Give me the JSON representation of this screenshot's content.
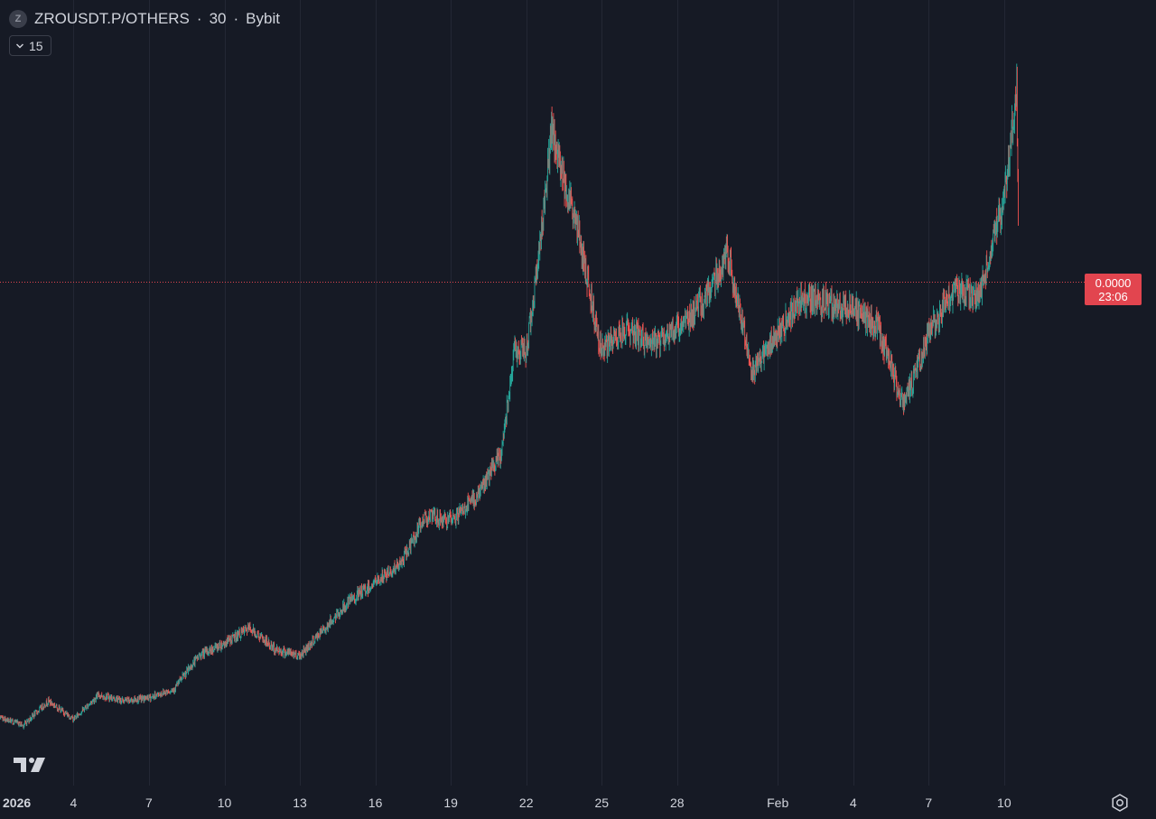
{
  "header": {
    "logo_letter": "Z",
    "symbol": "ZROUSDT.P/OTHERS",
    "interval": "30",
    "exchange": "Bybit",
    "separator": "·"
  },
  "indicator_button": {
    "label": "15"
  },
  "price_tag": {
    "price": "0.0000",
    "countdown": "23:06",
    "color": "#e2454f"
  },
  "colors": {
    "background": "#161a25",
    "up": "#26a69a",
    "down": "#ef5350",
    "grid": "#232734",
    "price_line": "#e2454f"
  },
  "chart_data": {
    "type": "candlestick",
    "title": "ZROUSDT.P/OTHERS · 30 · Bybit",
    "x_tick_labels": [
      "2026",
      "4",
      "7",
      "10",
      "13",
      "16",
      "19",
      "22",
      "25",
      "28",
      "Feb",
      "4",
      "7",
      "10"
    ],
    "x_range": [
      "2026-01-01",
      "2026-02-11"
    ],
    "y_scale_visible": false,
    "last_price": "0.0000",
    "grid": true,
    "trend_keypoints": [
      {
        "date": "2026-01-01",
        "price": 0.19
      },
      {
        "date": "2026-01-02",
        "price": 0.175
      },
      {
        "date": "2026-01-03",
        "price": 0.215
      },
      {
        "date": "2026-01-04",
        "price": 0.185
      },
      {
        "date": "2026-01-05",
        "price": 0.225
      },
      {
        "date": "2026-01-06",
        "price": 0.215
      },
      {
        "date": "2026-01-07",
        "price": 0.22
      },
      {
        "date": "2026-01-08",
        "price": 0.235
      },
      {
        "date": "2026-01-09",
        "price": 0.29
      },
      {
        "date": "2026-01-10",
        "price": 0.31
      },
      {
        "date": "2026-01-11",
        "price": 0.335
      },
      {
        "date": "2026-01-12",
        "price": 0.3
      },
      {
        "date": "2026-01-13",
        "price": 0.29
      },
      {
        "date": "2026-01-14",
        "price": 0.335
      },
      {
        "date": "2026-01-15",
        "price": 0.38
      },
      {
        "date": "2026-01-16",
        "price": 0.41
      },
      {
        "date": "2026-01-17",
        "price": 0.44
      },
      {
        "date": "2026-01-18",
        "price": 0.52
      },
      {
        "date": "2026-01-19",
        "price": 0.51
      },
      {
        "date": "2026-01-20",
        "price": 0.55
      },
      {
        "date": "2026-01-21",
        "price": 0.62
      },
      {
        "date": "2026-01-21T12:00",
        "price": 0.79
      },
      {
        "date": "2026-01-22",
        "price": 0.79
      },
      {
        "date": "2026-01-22T12:00",
        "price": 0.95
      },
      {
        "date": "2026-01-23",
        "price": 1.15
      },
      {
        "date": "2026-01-24",
        "price": 1.0
      },
      {
        "date": "2026-01-25",
        "price": 0.79
      },
      {
        "date": "2026-01-26",
        "price": 0.83
      },
      {
        "date": "2026-01-27",
        "price": 0.8
      },
      {
        "date": "2026-01-28",
        "price": 0.83
      },
      {
        "date": "2026-01-29",
        "price": 0.87
      },
      {
        "date": "2026-01-30",
        "price": 0.95
      },
      {
        "date": "2026-01-31",
        "price": 0.76
      },
      {
        "date": "2026-02-01",
        "price": 0.82
      },
      {
        "date": "2026-02-02",
        "price": 0.88
      },
      {
        "date": "2026-02-03",
        "price": 0.87
      },
      {
        "date": "2026-02-04",
        "price": 0.86
      },
      {
        "date": "2026-02-05",
        "price": 0.83
      },
      {
        "date": "2026-02-06",
        "price": 0.7
      },
      {
        "date": "2026-02-07",
        "price": 0.82
      },
      {
        "date": "2026-02-08",
        "price": 0.89
      },
      {
        "date": "2026-02-09",
        "price": 0.88
      },
      {
        "date": "2026-02-10",
        "price": 1.04
      },
      {
        "date": "2026-02-10T12:00",
        "price": 1.22
      },
      {
        "date": "2026-02-10T14:00",
        "price": 0.92
      }
    ]
  }
}
